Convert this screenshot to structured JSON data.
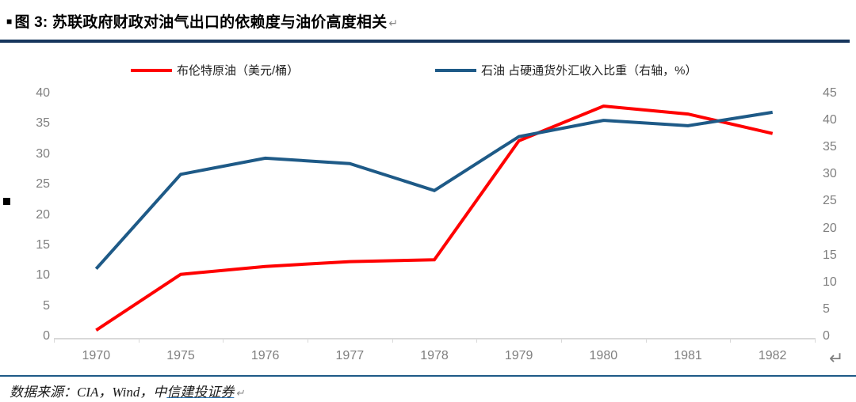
{
  "header": {
    "bullet": "■",
    "title": "图 3: 苏联政府财政对油气出口的依赖度与油价高度相关",
    "return_mark": "↵"
  },
  "chart_data": {
    "type": "line",
    "categories": [
      "1970",
      "1975",
      "1976",
      "1977",
      "1978",
      "1979",
      "1980",
      "1981",
      "1982"
    ],
    "series": [
      {
        "name": "布伦特原油（美元/桶）",
        "axis": "left",
        "color": "#FF0000",
        "values": [
          1.0,
          10.2,
          11.5,
          12.3,
          12.6,
          32.2,
          37.9,
          36.6,
          33.4
        ]
      },
      {
        "name": "石油 占硬通货外汇收入比重（右轴，%）",
        "axis": "right",
        "color": "#1E5A87",
        "values": [
          12.5,
          30.0,
          33.0,
          32.0,
          27.0,
          37.0,
          40.0,
          39.0,
          41.5
        ]
      }
    ],
    "left_axis": {
      "min": 0,
      "max": 40,
      "step": 5,
      "ticks": [
        0,
        5,
        10,
        15,
        20,
        25,
        30,
        35,
        40
      ]
    },
    "right_axis": {
      "min": 0,
      "max": 45,
      "step": 5,
      "ticks": [
        0,
        5,
        10,
        15,
        20,
        25,
        30,
        35,
        40,
        45
      ]
    },
    "grid": false,
    "legend_position": "top",
    "title": "苏联政府财政对油气出口的依赖度与油价高度相关",
    "xlabel": "",
    "ylabel_left": "美元/桶",
    "ylabel_right": "%"
  },
  "annotations": {
    "margin_bullet": "■",
    "chart_return_mark": "↵"
  },
  "footer": {
    "source_prefix": "数据来源：CIA，Wind，中",
    "source_link": "信建投证券",
    "return_mark": "↵"
  },
  "colors": {
    "rule_top": "#17365D",
    "rule_bottom": "#1E5A87",
    "axis_line": "#D9D9D9",
    "tick_label": "#7F7F7F",
    "series_red": "#FF0000",
    "series_blue": "#1E5A87"
  }
}
